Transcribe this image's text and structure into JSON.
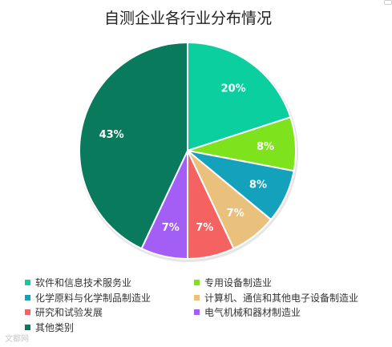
{
  "chart_data": {
    "type": "pie",
    "title": "自测企业各行业分布情况",
    "categories": [
      "软件和信息技术服务业",
      "专用设备制造业",
      "化学原料与化学制品制造业",
      "计算机、通信和其他电子设备制造业",
      "研究和试验发展",
      "电气机械和器材制造业",
      "其他类别"
    ],
    "values": [
      20,
      8,
      8,
      7,
      7,
      7,
      43
    ],
    "labels": [
      "20%",
      "8%",
      "8%",
      "7%",
      "7%",
      "7%",
      "43%"
    ],
    "colors": [
      "#0bcf9f",
      "#7ee21c",
      "#13a1bc",
      "#e9c17d",
      "#f56262",
      "#a35ef6",
      "#097a5b"
    ],
    "legend": [
      "软件和信息技术服务业",
      "专用设备制造业",
      "化学原料与化学制品制造业",
      "计算机、通信和其他电子设备制造业",
      "研究和试验发展",
      "电气机械和器材制造业",
      "其他类别"
    ],
    "legend_position": "bottom"
  },
  "watermark": "文都网"
}
